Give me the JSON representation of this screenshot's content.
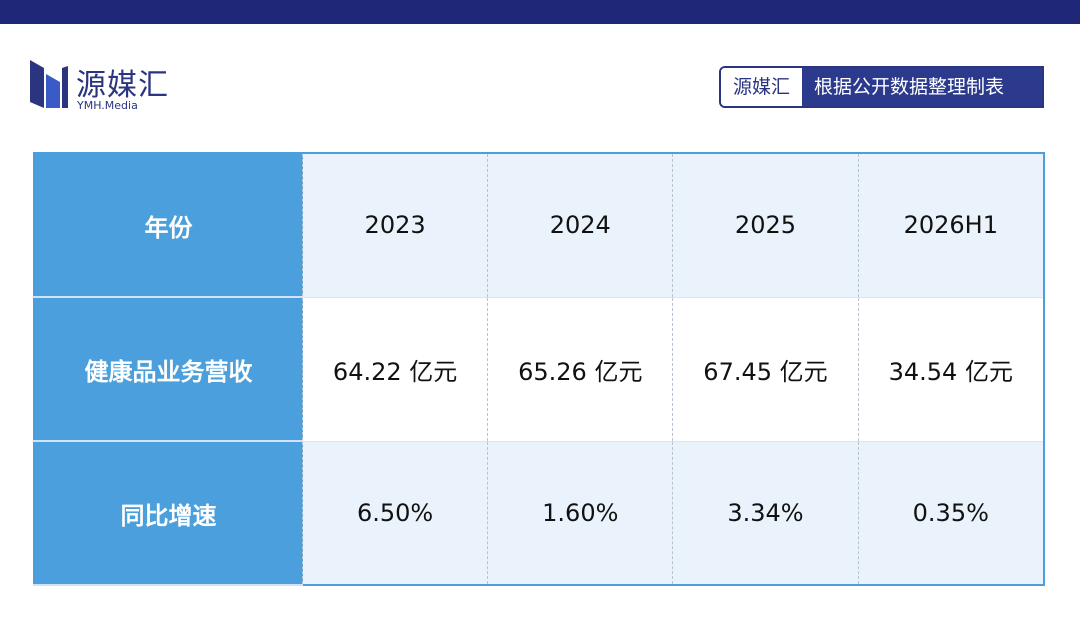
{
  "logo": {
    "name": "源媒汇",
    "subtitle": "YMH.Media"
  },
  "badge": {
    "brand": "源媒汇",
    "text": "根据公开数据整理制表"
  },
  "table": {
    "rows": [
      [
        "年份",
        "2023",
        "2024",
        "2025",
        "2026H1"
      ],
      [
        "健康品业务营收",
        "64.22 亿元",
        "65.26 亿元",
        "67.45 亿元",
        "34.54 亿元"
      ],
      [
        "同比增速",
        "6.50%",
        "1.60%",
        "3.34%",
        "0.35%"
      ]
    ]
  }
}
